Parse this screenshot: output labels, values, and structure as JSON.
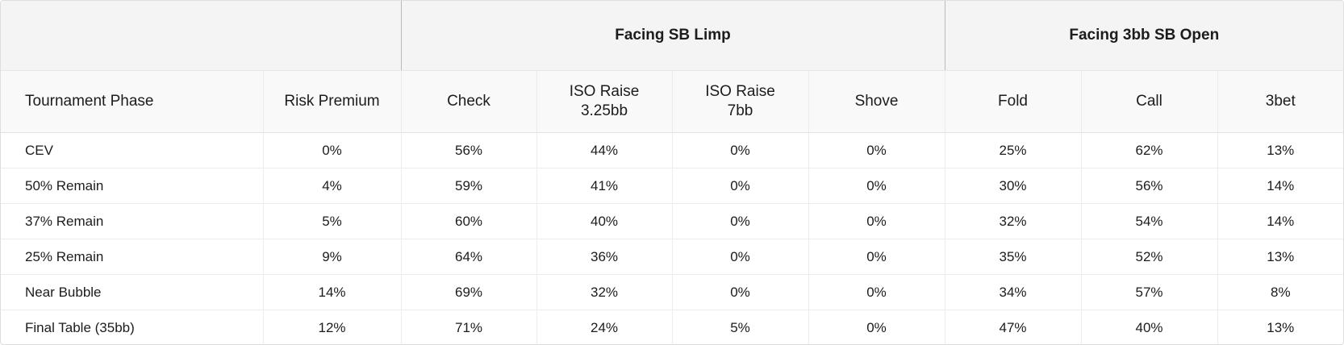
{
  "header": {
    "groups": [
      {
        "label": ""
      },
      {
        "label": "Facing SB Limp"
      },
      {
        "label": "Facing 3bb SB Open"
      }
    ],
    "columns": [
      {
        "line1": "Tournament Phase",
        "line2": ""
      },
      {
        "line1": "Risk Premium",
        "line2": ""
      },
      {
        "line1": "Check",
        "line2": ""
      },
      {
        "line1": "ISO Raise",
        "line2": "3.25bb"
      },
      {
        "line1": "ISO Raise",
        "line2": "7bb"
      },
      {
        "line1": "Shove",
        "line2": ""
      },
      {
        "line1": "Fold",
        "line2": ""
      },
      {
        "line1": "Call",
        "line2": ""
      },
      {
        "line1": "3bet",
        "line2": ""
      }
    ]
  },
  "rows": [
    [
      "CEV",
      "0%",
      "56%",
      "44%",
      "0%",
      "0%",
      "25%",
      "62%",
      "13%"
    ],
    [
      "50% Remain",
      "4%",
      "59%",
      "41%",
      "0%",
      "0%",
      "30%",
      "56%",
      "14%"
    ],
    [
      "37% Remain",
      "5%",
      "60%",
      "40%",
      "0%",
      "0%",
      "32%",
      "54%",
      "14%"
    ],
    [
      "25% Remain",
      "9%",
      "64%",
      "36%",
      "0%",
      "0%",
      "35%",
      "52%",
      "13%"
    ],
    [
      "Near Bubble",
      "14%",
      "69%",
      "32%",
      "0%",
      "0%",
      "34%",
      "57%",
      "8%"
    ],
    [
      "Final Table (35bb)",
      "12%",
      "71%",
      "24%",
      "5%",
      "0%",
      "47%",
      "40%",
      "13%"
    ]
  ]
}
